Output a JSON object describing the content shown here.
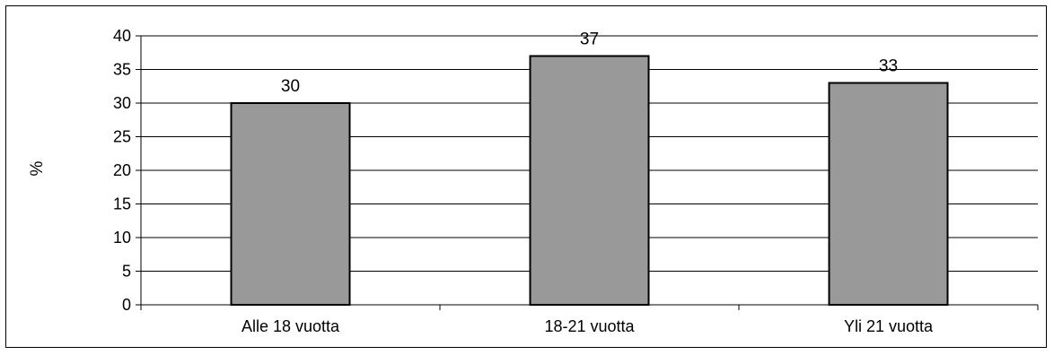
{
  "chart_data": {
    "type": "bar",
    "categories": [
      "Alle 18 vuotta",
      "18-21 vuotta",
      "Yli 21 vuotta"
    ],
    "values": [
      30,
      37,
      33
    ],
    "data_labels": [
      "30",
      "37",
      "33"
    ],
    "title": "",
    "xlabel": "",
    "ylabel": "%",
    "ylim": [
      0,
      40
    ],
    "yticks": [
      0,
      5,
      10,
      15,
      20,
      25,
      30,
      35,
      40
    ],
    "ytick_labels": [
      "0",
      "5",
      "10",
      "15",
      "20",
      "25",
      "30",
      "35",
      "40"
    ],
    "grid": true,
    "legend": false,
    "colors": {
      "bar_fill": "#999999",
      "bar_stroke": "#000000",
      "grid": "#000000",
      "frame": "#000000"
    }
  }
}
